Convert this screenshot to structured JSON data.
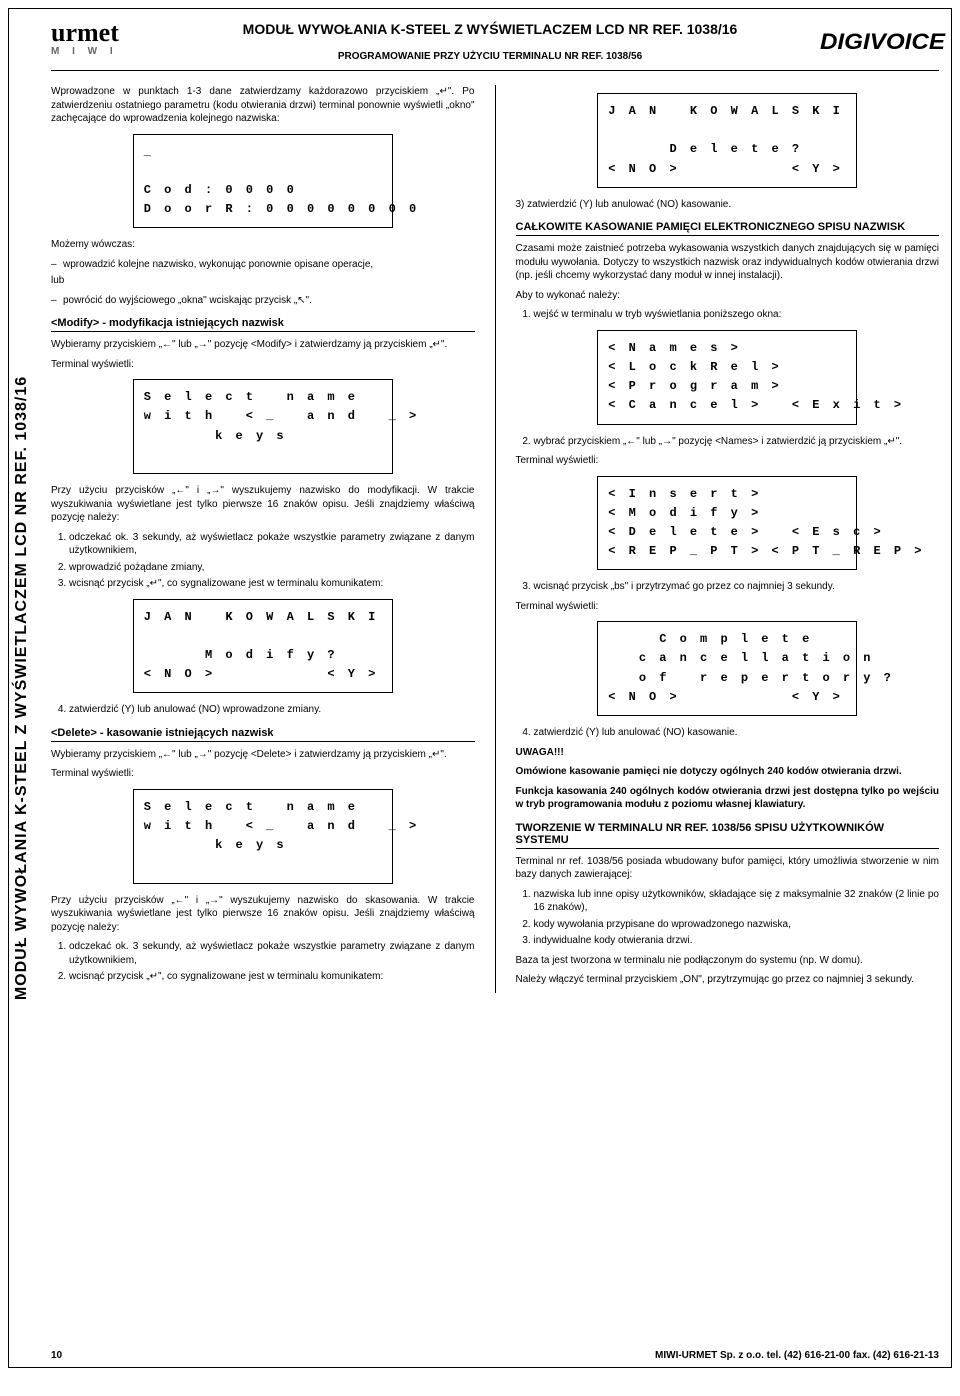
{
  "side_label": "MODUŁ WYWOŁANIA K-STEEL Z WYŚWIETLACZEM LCD       NR REF. 1038/16",
  "logo": {
    "text": "urmet",
    "sub": "M I W I"
  },
  "brand_right": "DIGIVOICE",
  "title_main": "MODUŁ WYWOŁANIA K-STEEL Z WYŚWIETLACZEM LCD NR REF. 1038/16",
  "title_sub": "PROGRAMOWANIE PRZY UŻYCIU TERMINALU NR REF. 1038/56",
  "left": {
    "intro": "Wprowadzone w punktach 1-3 dane zatwierdzamy każdorazowo przyciskiem „↵\". Po zatwierdzeniu ostatniego parametru (kodu otwierania drzwi) terminal ponownie wyświetli „okno\" zachęcające do wprowadzenia kolejnego nazwiska:",
    "lcd1": {
      "l1": "_",
      "l2": " ",
      "l3": "C o d : 0 0 0 0",
      "l4": "D o o r R : 0 0 0 0 0 0 0 0"
    },
    "mozemy": "Możemy wówczas:",
    "opt1": "wprowadzić kolejne nazwisko, wykonując ponownie opisane operacje,",
    "lub": "lub",
    "opt2": "powrócić do wyjściowego „okna\" wciskając przycisk „↖\".",
    "modify_h": "<Modify> - modyfikacja istniejących nazwisk",
    "modify_p": "Wybieramy przyciskiem „←\" lub „→\" pozycję <Modify> i zatwierdzamy ją przyciskiem „↵\".",
    "term_shows": "Terminal wyświetli:",
    "lcd2": {
      "l1": "S e l e c t   n a m e",
      "l2": "w i t h   < _   a n d   _ >",
      "l3": "       k e y s",
      "l4": " "
    },
    "modify_p2": "Przy użyciu przycisków „←\" i „→\" wyszukujemy nazwisko do modyfikacji. W trakcie wyszukiwania wyświetlane jest tylko pierwsze 16 znaków opisu. Jeśli znajdziemy właściwą pozycję należy:",
    "modify_s1": "odczekać ok. 3    sekundy, aż wyświetlacz pokaże wszystkie parametry związane z danym użytkownikiem,",
    "modify_s2": "wprowadzić pożądane zmiany,",
    "modify_s3": "wcisnąć przycisk „↵\", co sygnalizowane jest w terminalu komunikatem:",
    "lcd3": {
      "l1": "J A N   K O W A L S K I",
      "l2": " ",
      "l3": "      M o d i f y ?",
      "l4": "< N O >           < Y >"
    },
    "modify_s4": "zatwierdzić (Y) lub anulować (NO) wprowadzone zmiany.",
    "delete_h": "<Delete> - kasowanie istniejących nazwisk",
    "delete_p": "Wybieramy przyciskiem „←\" lub „→\" pozycję <Delete> i zatwierdzamy ją przyciskiem „↵\".",
    "lcd4": {
      "l1": "S e l e c t   n a m e",
      "l2": "w i t h   < _   a n d   _ >",
      "l3": "       k e y s",
      "l4": " "
    },
    "delete_p2": "Przy użyciu przycisków „←\" i „→\" wyszukujemy nazwisko do skasowania. W trakcie wyszukiwania wyświetlane jest tylko pierwsze 16 znaków opisu. Jeśli znajdziemy właściwą pozycję należy:",
    "delete_s1": "odczekać ok. 3   sekundy, aż wyświetlacz pokaże wszystkie parametry związane z danym użytkownikiem,",
    "delete_s2": "wcisnąć przycisk „↵\", co sygnalizowane jest w terminalu komunikatem:"
  },
  "right": {
    "lcd5": {
      "l1": "J A N   K O W A L S K I",
      "l2": " ",
      "l3": "      D e l e t e ?",
      "l4": "< N O >           < Y >"
    },
    "r_s3": "3) zatwierdzić (Y) lub anulować (NO) kasowanie.",
    "erase_h": "CAŁKOWITE KASOWANIE PAMIĘCI ELEKTRONICZNEGO SPISU NAZWISK",
    "erase_p": "Czasami może zaistnieć potrzeba wykasowania wszystkich danych znajdujących się w pamięci modułu wywołania. Dotyczy to wszystkich nazwisk oraz indywidualnych kodów otwierania drzwi (np. jeśli chcemy wykorzystać dany moduł w innej instalacji).",
    "erase_p2": "Aby to wykonać należy:",
    "erase_s1": "wejść w terminalu w tryb wyświetlania poniższego okna:",
    "lcd6": {
      "l1": "< N a m e s >",
      "l2": "< L o c k R e l >",
      "l3": "< P r o g r a m >",
      "l4": "< C a n c e l >   < E x i t >"
    },
    "erase_s2": "wybrać przyciskiem „←\" lub „→\" pozycję <Names> i zatwierdzić ją przyciskiem „↵\".",
    "lcd7": {
      "l1": "< I n s e r t >",
      "l2": "< M o d i f y >",
      "l3": "< D e l e t e >   < E s c >",
      "l4": "< R E P _ P T > < P T _ R E P >"
    },
    "erase_s3": "wcisnąć przycisk „bs\" i przytrzymać go przez co najmniej 3 sekundy.",
    "lcd8": {
      "l1": "     C o m p l e t e",
      "l2": "   c a n c e l l a t i o n",
      "l3": "   o f   r e p e r t o r y ?",
      "l4": "< N O >           < Y >"
    },
    "erase_s4": "zatwierdzić (Y) lub anulować (NO) kasowanie.",
    "uwaga_h": "UWAGA!!!",
    "uwaga_p1": "Omówione kasowanie pamięci nie dotyczy ogólnych 240 kodów otwierania drzwi.",
    "uwaga_p2": "Funkcja kasowania 240 ogólnych kodów otwierania drzwi jest dostępna tylko po wejściu w tryb programowania modułu z poziomu własnej klawiatury.",
    "create_h": "TWORZENIE W TERMINALU NR REF. 1038/56 SPISU UŻYTKOWNIKÓW SYSTEMU",
    "create_p": "Terminal nr ref. 1038/56 posiada wbudowany bufor pamięci, który umożliwia stworzenie w nim bazy danych zawierającej:",
    "create_li1": "nazwiska lub inne opisy użytkowników, składające się z maksymalnie 32 znaków (2 linie po 16 znaków),",
    "create_li2": "kody wywołania przypisane do wprowadzonego nazwiska,",
    "create_li3": "indywidualne kody otwierania drzwi.",
    "create_p2": "Baza ta jest tworzona w terminalu nie podłączonym do systemu (np. W domu).",
    "create_p3": "Należy włączyć terminal przyciskiem „ON\", przytrzymując go przez co najmniej 3 sekundy."
  },
  "footer": {
    "page": "10",
    "company": "MIWI-URMET Sp. z o.o.  tel. (42) 616-21-00  fax. (42) 616-21-13"
  }
}
